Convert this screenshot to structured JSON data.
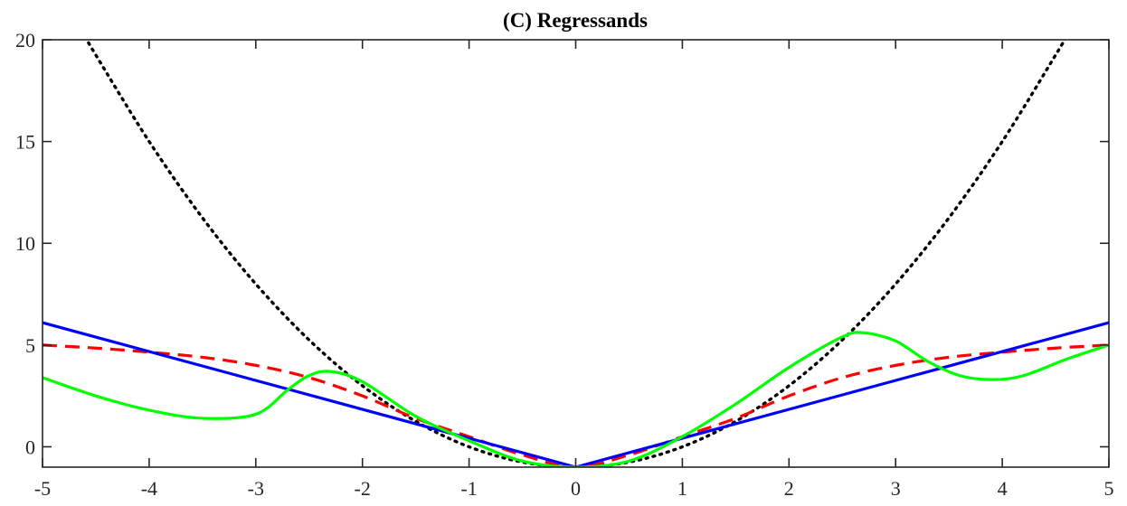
{
  "chart_data": {
    "type": "line",
    "title": "(C) Regressands",
    "xlabel": "",
    "ylabel": "",
    "xlim": [
      -5,
      5
    ],
    "ylim": [
      -1,
      20
    ],
    "x_ticks": [
      -5,
      -4,
      -3,
      -2,
      -1,
      0,
      1,
      2,
      3,
      4,
      5
    ],
    "y_ticks": [
      0,
      5,
      10,
      15,
      20
    ],
    "grid": false,
    "legend": "none",
    "series": [
      {
        "style": "dotted",
        "color": "#000000",
        "x": [
          -4.6,
          -4.5,
          -4.0,
          -3.5,
          -3.0,
          -2.5,
          -2.0,
          -1.5,
          -1.0,
          -0.5,
          0,
          0.5,
          1.0,
          1.5,
          2.0,
          2.5,
          3.0,
          3.5,
          4.0,
          4.5,
          4.6
        ],
        "y": [
          20.16,
          19.25,
          15.0,
          11.25,
          8.0,
          5.25,
          3.0,
          1.25,
          0.0,
          -0.75,
          -1.0,
          -0.75,
          0.0,
          1.25,
          3.0,
          5.25,
          8.0,
          11.25,
          15.0,
          19.25,
          20.16
        ]
      },
      {
        "style": "dashed",
        "color": "#ff0000",
        "x": [
          -5,
          -4.5,
          -4,
          -3.5,
          -3,
          -2.5,
          -2,
          -1.5,
          -1,
          -0.5,
          0,
          0.5,
          1,
          1.5,
          2,
          2.5,
          3,
          3.5,
          4,
          4.5,
          5
        ],
        "y": [
          5.0,
          4.85,
          4.65,
          4.4,
          4.0,
          3.4,
          2.5,
          1.4,
          0.5,
          -0.4,
          -1.0,
          -0.4,
          0.5,
          1.4,
          2.5,
          3.4,
          4.0,
          4.4,
          4.65,
          4.85,
          5.0
        ]
      },
      {
        "style": "solid",
        "color": "#0000ff",
        "x": [
          -5,
          0,
          5
        ],
        "y": [
          6.1,
          -1.0,
          6.1
        ]
      },
      {
        "style": "solid",
        "color": "#00ff00",
        "x": [
          -5,
          -4.5,
          -4,
          -3.5,
          -3,
          -2.7,
          -2.5,
          -2.3,
          -2,
          -1.5,
          -1,
          -0.5,
          0,
          0.5,
          1,
          1.5,
          2,
          2.5,
          2.7,
          3,
          3.3,
          3.6,
          3.9,
          4.2,
          4.6,
          5
        ],
        "y": [
          3.4,
          2.5,
          1.8,
          1.4,
          1.6,
          2.8,
          3.5,
          3.7,
          3.2,
          1.5,
          0.3,
          -0.7,
          -1.0,
          -0.7,
          0.5,
          2.1,
          3.9,
          5.4,
          5.6,
          5.2,
          4.2,
          3.5,
          3.3,
          3.5,
          4.3,
          5.0
        ]
      }
    ]
  }
}
